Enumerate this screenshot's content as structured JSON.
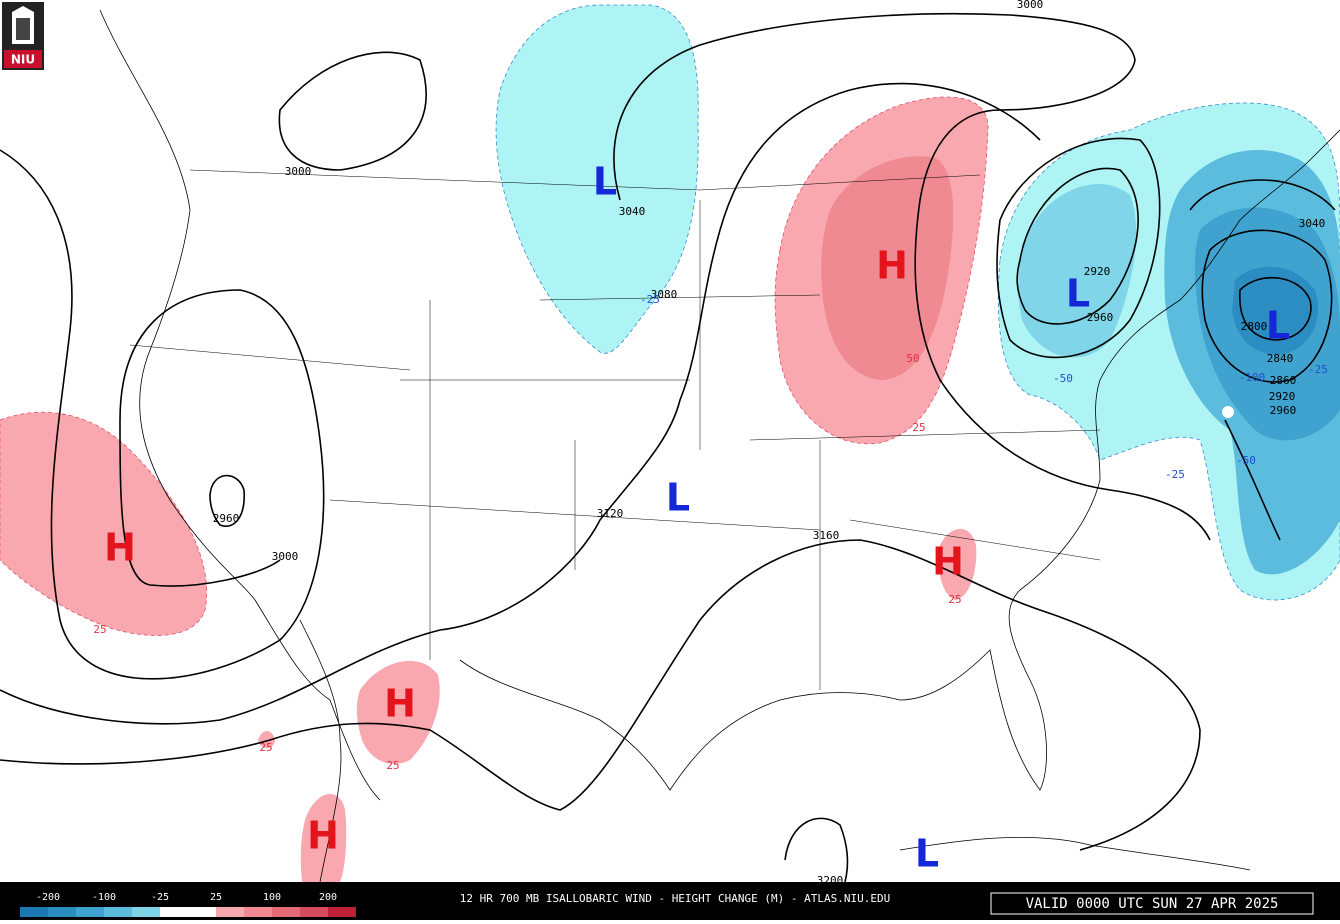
{
  "logo": "NIU",
  "map": {
    "centers": [
      {
        "symbol": "H",
        "color": "#e4141c"
      },
      {
        "symbol": "H",
        "color": "#e4141c"
      },
      {
        "symbol": "H",
        "color": "#e4141c"
      },
      {
        "symbol": "H",
        "color": "#e4141c"
      },
      {
        "symbol": "H",
        "color": "#e4141c"
      },
      {
        "symbol": "L",
        "color": "#1428d8"
      },
      {
        "symbol": "L",
        "color": "#1428d8"
      },
      {
        "symbol": "L",
        "color": "#1428d8"
      },
      {
        "symbol": "L",
        "color": "#1428d8"
      },
      {
        "symbol": "L",
        "color": "#1428d8"
      }
    ],
    "height_labels": [
      3000,
      3000,
      3040,
      3080,
      3120,
      3160,
      3200,
      2960,
      3000,
      2920,
      2960,
      2800,
      2840,
      2860,
      2920,
      2960,
      3040
    ],
    "change_labels": [
      -25,
      -50,
      -100,
      -50,
      -25,
      -25,
      50,
      25,
      25,
      25,
      25,
      25
    ]
  },
  "colorbar": {
    "colors": [
      "#1a78b0",
      "#2b8dc1",
      "#40a3cf",
      "#5cbcdd",
      "#80d6e8",
      "#ffffff",
      "#ffffff",
      "#f8a8ae",
      "#ef8a92",
      "#e46a76",
      "#d54a5c",
      "#c02036"
    ],
    "labels": [
      -200,
      -100,
      -25,
      25,
      100,
      200
    ]
  },
  "title": "12 HR 700 MB ISALLOBARIC WIND - HEIGHT CHANGE (M) - ATLAS.NIU.EDU",
  "valid": "VALID 0000 UTC SUN 27 APR 2025"
}
